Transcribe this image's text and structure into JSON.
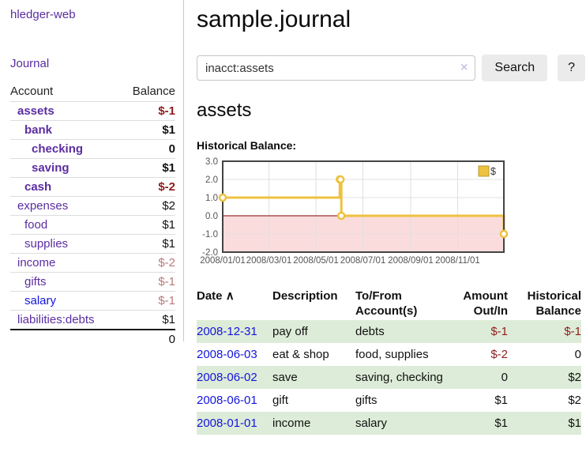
{
  "colors": {
    "link_purple": "#5b2da1",
    "link_blue": "#1414dd",
    "negative_strong": "#8f1d1d",
    "negative_muted": "#bb7878",
    "row_stripe_green": "#ddecd8",
    "chart_series_gold": "#edc240",
    "chart_negative_fill": "#fbdcdc",
    "chart_zero_line": "#993333"
  },
  "sidebar": {
    "app_title": "hledger-web",
    "journal_link": "Journal",
    "accounts_table": {
      "headers": {
        "account": "Account",
        "balance": "Balance"
      },
      "rows": [
        {
          "name": "assets",
          "depth": 1,
          "bold": true,
          "balance": "$-1",
          "balance_tone": "neg-strong",
          "link_tone": "purple"
        },
        {
          "name": "bank",
          "depth": 2,
          "bold": true,
          "balance": "$1",
          "balance_tone": "plain",
          "link_tone": "purple"
        },
        {
          "name": "checking",
          "depth": 3,
          "bold": true,
          "balance": "0",
          "balance_tone": "plain",
          "link_tone": "purple"
        },
        {
          "name": "saving",
          "depth": 3,
          "bold": true,
          "balance": "$1",
          "balance_tone": "plain",
          "link_tone": "purple"
        },
        {
          "name": "cash",
          "depth": 2,
          "bold": true,
          "balance": "$-2",
          "balance_tone": "neg-strong",
          "link_tone": "purple"
        },
        {
          "name": "expenses",
          "depth": 1,
          "bold": false,
          "balance": "$2",
          "balance_tone": "plain",
          "link_tone": "purple"
        },
        {
          "name": "food",
          "depth": 2,
          "bold": false,
          "balance": "$1",
          "balance_tone": "plain",
          "link_tone": "purple"
        },
        {
          "name": "supplies",
          "depth": 2,
          "bold": false,
          "balance": "$1",
          "balance_tone": "plain",
          "link_tone": "purple"
        },
        {
          "name": "income",
          "depth": 1,
          "bold": false,
          "balance": "$-2",
          "balance_tone": "neg-muted",
          "link_tone": "purple"
        },
        {
          "name": "gifts",
          "depth": 2,
          "bold": false,
          "balance": "$-1",
          "balance_tone": "neg-muted",
          "link_tone": "purple"
        },
        {
          "name": "salary",
          "depth": 2,
          "bold": false,
          "balance": "$-1",
          "balance_tone": "neg-muted",
          "link_tone": "blue"
        },
        {
          "name": "liabilities:debts",
          "depth": 1,
          "bold": false,
          "balance": "$1",
          "balance_tone": "plain",
          "link_tone": "purple"
        }
      ],
      "total": "0"
    }
  },
  "header": {
    "title": "sample.journal"
  },
  "search": {
    "value": "inacct:assets",
    "clear_icon": "×",
    "button_label": "Search",
    "help_label": "?"
  },
  "account_page": {
    "title": "assets",
    "chart_label": "Historical Balance:"
  },
  "chart_data": {
    "type": "line",
    "step": true,
    "title": "Historical Balance",
    "legend": [
      {
        "label": "$",
        "color": "#edc240"
      }
    ],
    "legend_position": "top-right",
    "grid": true,
    "x_range": [
      "2008-01-01",
      "2008-12-31"
    ],
    "ylim": [
      -2,
      3
    ],
    "y_ticks": [
      "3.0",
      "2.0",
      "1.0",
      "0.0",
      "-1.0",
      "-2.0"
    ],
    "x_ticks": [
      {
        "date": "2008-01-01",
        "label": "2008/01/01"
      },
      {
        "date": "2008-03-01",
        "label": "2008/03/01"
      },
      {
        "date": "2008-05-01",
        "label": "2008/05/01"
      },
      {
        "date": "2008-07-01",
        "label": "2008/07/01"
      },
      {
        "date": "2008-09-01",
        "label": "2008/09/01"
      },
      {
        "date": "2008-11-01",
        "label": "2008/11/01"
      }
    ],
    "points": [
      {
        "date": "2008-01-01",
        "value": 1
      },
      {
        "date": "2008-06-01",
        "value": 2
      },
      {
        "date": "2008-06-02",
        "value": 2
      },
      {
        "date": "2008-06-03",
        "value": 0
      },
      {
        "date": "2008-12-31",
        "value": -1
      }
    ]
  },
  "register_table": {
    "headers": {
      "date": "Date",
      "sort_icon": "∧",
      "description": "Description",
      "tofrom": [
        "To/From",
        "Account(s)"
      ],
      "amount": [
        "Amount",
        "Out/In"
      ],
      "balance": [
        "Historical",
        "Balance"
      ]
    },
    "rows": [
      {
        "date": "2008-12-31",
        "description": "pay off",
        "accounts": "debts",
        "amount": "$-1",
        "balance": "$-1"
      },
      {
        "date": "2008-06-03",
        "description": "eat & shop",
        "accounts": "food, supplies",
        "amount": "$-2",
        "balance": "0"
      },
      {
        "date": "2008-06-02",
        "description": "save",
        "accounts": "saving, checking",
        "amount": "0",
        "balance": "$2"
      },
      {
        "date": "2008-06-01",
        "description": "gift",
        "accounts": "gifts",
        "amount": "$1",
        "balance": "$2"
      },
      {
        "date": "2008-01-01",
        "description": "income",
        "accounts": "salary",
        "amount": "$1",
        "balance": "$1"
      }
    ]
  }
}
